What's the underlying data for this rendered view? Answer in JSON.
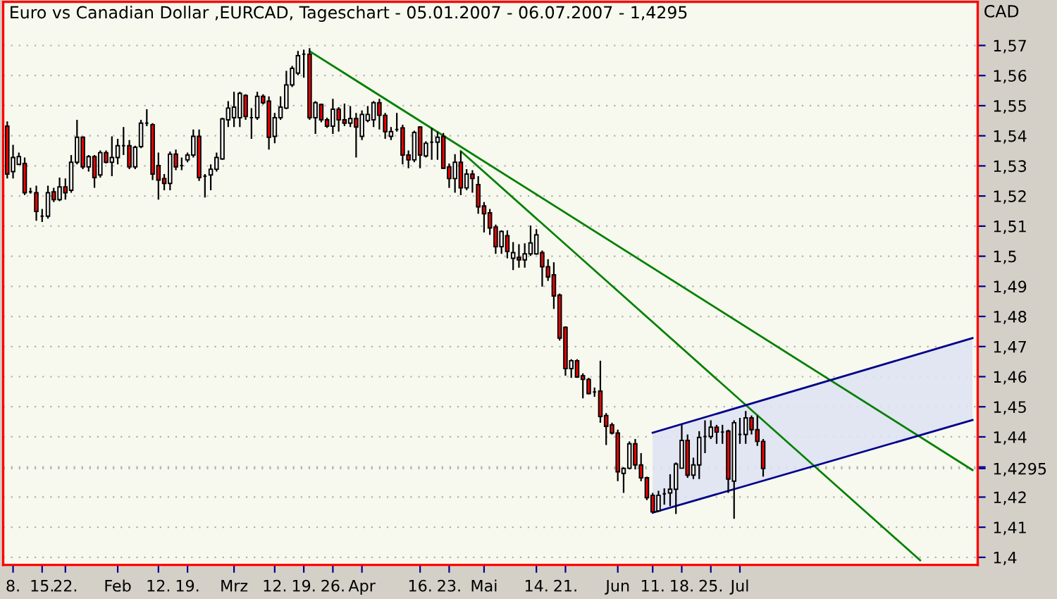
{
  "chart_data": {
    "type": "candlestick",
    "title": "Euro vs Canadian Dollar ,EURCAD, Tageschart - 05.01.2007 - 06.07.2007 - 1,4295",
    "ylabel": "CAD",
    "categories": [
      null,
      "8.",
      null,
      null,
      null,
      null,
      "15.",
      null,
      null,
      null,
      "22.",
      null,
      null,
      null,
      null,
      null,
      null,
      null,
      null,
      "Feb",
      null,
      null,
      null,
      null,
      null,
      null,
      "12.",
      null,
      null,
      null,
      null,
      "19.",
      null,
      null,
      null,
      null,
      null,
      null,
      null,
      "Mrz",
      null,
      null,
      null,
      null,
      null,
      null,
      "12.",
      null,
      null,
      null,
      null,
      "19.",
      null,
      null,
      null,
      null,
      "26.",
      null,
      null,
      null,
      null,
      "Apr",
      null,
      null,
      null,
      null,
      null,
      null,
      null,
      null,
      null,
      "16.",
      null,
      null,
      null,
      null,
      "23.",
      null,
      null,
      null,
      null,
      null,
      "Mai",
      null,
      null,
      null,
      null,
      null,
      null,
      null,
      null,
      "14.",
      null,
      null,
      null,
      null,
      "21.",
      null,
      null,
      null,
      null,
      null,
      null,
      null,
      null,
      "Jun",
      null,
      null,
      null,
      null,
      null,
      "11.",
      null,
      null,
      null,
      null,
      "18.",
      null,
      null,
      null,
      null,
      "25.",
      null,
      null,
      null,
      null,
      "Jul",
      null,
      null,
      null,
      null,
      null,
      null,
      null,
      null,
      null,
      null,
      null,
      null,
      null,
      null,
      null,
      null,
      null,
      null,
      null,
      null,
      null,
      null,
      null,
      null,
      null,
      null,
      null,
      null,
      null,
      null,
      null,
      null,
      null,
      null,
      null,
      null,
      null,
      null,
      null,
      null
    ],
    "ohlc": [
      [
        1.5432,
        1.5448,
        1.5258,
        1.5273
      ],
      [
        1.5281,
        1.537,
        1.5258,
        1.5328
      ],
      [
        1.5305,
        1.5344,
        1.5305,
        1.5331
      ],
      [
        1.5308,
        1.5328,
        1.5203,
        1.5211
      ],
      [
        1.5214,
        1.5227,
        1.5208,
        1.5214
      ],
      [
        1.5211,
        1.5234,
        1.5118,
        1.5149
      ],
      [
        1.5133,
        1.5157,
        1.5114,
        1.5133
      ],
      [
        1.5133,
        1.5234,
        1.5125,
        1.5211
      ],
      [
        1.5214,
        1.5227,
        1.518,
        1.5188
      ],
      [
        1.5188,
        1.5261,
        1.5183,
        1.523
      ],
      [
        1.523,
        1.5258,
        1.5188,
        1.5211
      ],
      [
        1.5219,
        1.5336,
        1.5211,
        1.5312
      ],
      [
        1.5312,
        1.5453,
        1.5305,
        1.5395
      ],
      [
        1.5395,
        1.5398,
        1.5289,
        1.5297
      ],
      [
        1.5297,
        1.5336,
        1.5281,
        1.5331
      ],
      [
        1.5331,
        1.5336,
        1.5227,
        1.5261
      ],
      [
        1.527,
        1.5351,
        1.5261,
        1.5344
      ],
      [
        1.5344,
        1.5351,
        1.5308,
        1.5312
      ],
      [
        1.5312,
        1.5398,
        1.5266,
        1.5328
      ],
      [
        1.5328,
        1.539,
        1.5305,
        1.5367
      ],
      [
        1.5367,
        1.5429,
        1.5336,
        1.5367
      ],
      [
        1.5367,
        1.5386,
        1.5289,
        1.5297
      ],
      [
        1.5297,
        1.5367,
        1.5289,
        1.5362
      ],
      [
        1.5364,
        1.5453,
        1.5359,
        1.5442
      ],
      [
        1.5442,
        1.5488,
        1.5432,
        1.5442
      ],
      [
        1.5437,
        1.5442,
        1.5253,
        1.5273
      ],
      [
        1.5301,
        1.5344,
        1.5188,
        1.5253
      ],
      [
        1.5258,
        1.5273,
        1.5219,
        1.5242
      ],
      [
        1.5242,
        1.5348,
        1.5219,
        1.5339
      ],
      [
        1.5339,
        1.5354,
        1.5286,
        1.5297
      ],
      [
        1.5301,
        1.5328,
        1.5286,
        1.5301
      ],
      [
        1.532,
        1.5344,
        1.5312,
        1.5336
      ],
      [
        1.5336,
        1.5421,
        1.5328,
        1.5398
      ],
      [
        1.5398,
        1.5421,
        1.525,
        1.5261
      ],
      [
        1.5266,
        1.5273,
        1.5195,
        1.5266
      ],
      [
        1.527,
        1.5305,
        1.5219,
        1.5289
      ],
      [
        1.5289,
        1.5344,
        1.5281,
        1.5328
      ],
      [
        1.5323,
        1.546,
        1.532,
        1.5456
      ],
      [
        1.5453,
        1.5515,
        1.5429,
        1.5492
      ],
      [
        1.546,
        1.5546,
        1.5429,
        1.5495
      ],
      [
        1.546,
        1.5546,
        1.5429,
        1.5541
      ],
      [
        1.5534,
        1.5538,
        1.5453,
        1.5464
      ],
      [
        1.546,
        1.5492,
        1.539,
        1.546
      ],
      [
        1.546,
        1.5546,
        1.5453,
        1.5531
      ],
      [
        1.5531,
        1.5538,
        1.5504,
        1.551
      ],
      [
        1.5515,
        1.5531,
        1.5354,
        1.5395
      ],
      [
        1.5398,
        1.5476,
        1.5375,
        1.546
      ],
      [
        1.546,
        1.5531,
        1.5453,
        1.5495
      ],
      [
        1.5492,
        1.5616,
        1.5488,
        1.5569
      ],
      [
        1.5569,
        1.5632,
        1.5562,
        1.5624
      ],
      [
        1.5608,
        1.5682,
        1.5601,
        1.5666
      ],
      [
        1.5671,
        1.5686,
        1.5593,
        1.5671
      ],
      [
        1.5671,
        1.5691,
        1.5453,
        1.546
      ],
      [
        1.546,
        1.5515,
        1.5406,
        1.551
      ],
      [
        1.5504,
        1.5507,
        1.5445,
        1.5453
      ],
      [
        1.5453,
        1.546,
        1.5426,
        1.5432
      ],
      [
        1.5432,
        1.5523,
        1.5406,
        1.5488
      ],
      [
        1.5488,
        1.5495,
        1.5414,
        1.5453
      ],
      [
        1.5453,
        1.5507,
        1.5432,
        1.5442
      ],
      [
        1.5442,
        1.5499,
        1.5429,
        1.5457
      ],
      [
        1.5457,
        1.5476,
        1.5328,
        1.5429
      ],
      [
        1.5398,
        1.5484,
        1.5386,
        1.5471
      ],
      [
        1.5451,
        1.5499,
        1.5445,
        1.5471
      ],
      [
        1.5453,
        1.5515,
        1.5429,
        1.551
      ],
      [
        1.551,
        1.5523,
        1.5421,
        1.5468
      ],
      [
        1.5468,
        1.5476,
        1.539,
        1.5414
      ],
      [
        1.5398,
        1.5429,
        1.5386,
        1.5414
      ],
      [
        1.5421,
        1.5476,
        1.5414,
        1.5421
      ],
      [
        1.5426,
        1.5437,
        1.5305,
        1.5336
      ],
      [
        1.5336,
        1.5351,
        1.5292,
        1.532
      ],
      [
        1.532,
        1.5417,
        1.5312,
        1.5411
      ],
      [
        1.5429,
        1.5432,
        1.5292,
        1.5336
      ],
      [
        1.5333,
        1.5382,
        1.5328,
        1.5375
      ],
      [
        1.5379,
        1.5426,
        1.532,
        1.5379
      ],
      [
        1.5379,
        1.5414,
        1.532,
        1.5395
      ],
      [
        1.5398,
        1.5409,
        1.5289,
        1.5292
      ],
      [
        1.5297,
        1.5308,
        1.5227,
        1.5258
      ],
      [
        1.5258,
        1.5339,
        1.5211,
        1.5312
      ],
      [
        1.5312,
        1.5348,
        1.5203,
        1.5227
      ],
      [
        1.5227,
        1.5289,
        1.5219,
        1.5273
      ],
      [
        1.5273,
        1.5286,
        1.5211,
        1.5258
      ],
      [
        1.5238,
        1.5266,
        1.5141,
        1.5164
      ],
      [
        1.5167,
        1.518,
        1.5079,
        1.5141
      ],
      [
        1.5144,
        1.5157,
        1.5071,
        1.5094
      ],
      [
        1.5097,
        1.5105,
        1.5008,
        1.5032
      ],
      [
        1.5032,
        1.5086,
        1.5008,
        1.5082
      ],
      [
        1.5068,
        1.5086,
        1.4993,
        1.5016
      ],
      [
        1.4993,
        1.5047,
        1.4954,
        1.5012
      ],
      [
        1.4996,
        1.504,
        1.4962,
        1.4988
      ],
      [
        1.4988,
        1.5043,
        1.4962,
        1.5008
      ],
      [
        1.5008,
        1.5102,
        1.5001,
        1.5044
      ],
      [
        1.5008,
        1.509,
        1.5005,
        1.5071
      ],
      [
        1.5012,
        1.5019,
        1.4899,
        1.4965
      ],
      [
        1.4965,
        1.499,
        1.4918,
        1.4931
      ],
      [
        1.4938,
        1.498,
        1.4825,
        1.4868
      ],
      [
        1.4871,
        1.4876,
        1.472,
        1.4728
      ],
      [
        1.4764,
        1.4767,
        1.4603,
        1.4627
      ],
      [
        1.4627,
        1.4658,
        1.4596,
        1.4653
      ],
      [
        1.4653,
        1.4658,
        1.4596,
        1.4599
      ],
      [
        1.4603,
        1.4611,
        1.4528,
        1.4591
      ],
      [
        1.4591,
        1.4596,
        1.4541,
        1.4544
      ],
      [
        1.4549,
        1.4564,
        1.4533,
        1.4549
      ],
      [
        1.4552,
        1.4653,
        1.4447,
        1.4468
      ],
      [
        1.4471,
        1.4479,
        1.4373,
        1.4435
      ],
      [
        1.444,
        1.4447,
        1.4408,
        1.4413
      ],
      [
        1.4413,
        1.4424,
        1.4253,
        1.4284
      ],
      [
        1.4279,
        1.4299,
        1.4214,
        1.4295
      ],
      [
        1.4296,
        1.4385,
        1.4292,
        1.4377
      ],
      [
        1.4377,
        1.4393,
        1.4292,
        1.4307
      ],
      [
        1.4307,
        1.4346,
        1.4253,
        1.4264
      ],
      [
        1.4264,
        1.4268,
        1.419,
        1.4198
      ],
      [
        1.4206,
        1.4214,
        1.4148,
        1.4151
      ],
      [
        1.4154,
        1.4221,
        1.4151,
        1.4206
      ],
      [
        1.4211,
        1.4229,
        1.4175,
        1.4211
      ],
      [
        1.4214,
        1.4276,
        1.417,
        1.4226
      ],
      [
        1.4226,
        1.4315,
        1.4144,
        1.431
      ],
      [
        1.4296,
        1.444,
        1.4295,
        1.4388
      ],
      [
        1.4388,
        1.4408,
        1.4264,
        1.4273
      ],
      [
        1.4273,
        1.4331,
        1.426,
        1.4307
      ],
      [
        1.4307,
        1.4419,
        1.426,
        1.4398
      ],
      [
        1.4401,
        1.4455,
        1.4346,
        1.4401
      ],
      [
        1.4401,
        1.4455,
        1.4393,
        1.4432
      ],
      [
        1.4432,
        1.444,
        1.4377,
        1.4416
      ],
      [
        1.4416,
        1.444,
        1.4377,
        1.4416
      ],
      [
        1.4419,
        1.4424,
        1.4214,
        1.426
      ],
      [
        1.4253,
        1.4455,
        1.4128,
        1.4447
      ],
      [
        1.4408,
        1.4463,
        1.4377,
        1.4408
      ],
      [
        1.4408,
        1.4486,
        1.4377,
        1.4463
      ],
      [
        1.4463,
        1.4471,
        1.4408,
        1.4424
      ],
      [
        1.4424,
        1.4471,
        1.437,
        1.4385
      ],
      [
        1.4385,
        1.4393,
        1.4268,
        1.4295
      ],
      null,
      null,
      null,
      null,
      null,
      null,
      null,
      null,
      null,
      null,
      null,
      null,
      null,
      null,
      null,
      null,
      null,
      null,
      null,
      null,
      null,
      null,
      null,
      null,
      null,
      null,
      null,
      null,
      null,
      null,
      null,
      null,
      null,
      null,
      null,
      null
    ],
    "series": [
      {
        "type": "line",
        "color": "#008000",
        "values": [
          null,
          null,
          null,
          null,
          null,
          null,
          null,
          null,
          null,
          null,
          null,
          null,
          null,
          null,
          null,
          null,
          null,
          null,
          null,
          null,
          null,
          null,
          null,
          null,
          null,
          null,
          null,
          null,
          null,
          null,
          null,
          null,
          null,
          null,
          null,
          null,
          null,
          null,
          null,
          null,
          null,
          null,
          null,
          null,
          null,
          null,
          null,
          null,
          null,
          null,
          null,
          null,
          1.5681,
          null,
          null,
          null,
          null,
          null,
          null,
          null,
          null,
          null,
          null,
          null,
          null,
          null,
          null,
          null,
          null,
          null,
          null,
          null,
          null,
          null,
          null,
          null,
          null,
          null,
          null,
          null,
          null,
          null,
          null,
          null,
          null,
          null,
          null,
          null,
          null,
          null,
          null,
          null,
          null,
          null,
          null,
          null,
          null,
          null,
          null,
          null,
          null,
          null,
          null,
          null,
          null,
          null,
          null,
          null,
          null,
          null,
          null,
          null,
          null,
          null,
          null,
          null,
          null,
          null,
          null,
          null,
          null,
          null,
          null,
          null,
          null,
          null,
          null,
          null,
          null,
          null,
          null,
          null,
          null,
          null,
          null,
          null,
          null,
          null,
          null,
          null,
          null,
          null,
          null,
          null,
          null,
          null,
          null,
          null,
          null,
          null,
          null,
          null,
          null,
          null,
          null,
          null,
          null,
          null,
          null,
          null,
          null,
          null,
          null,
          null,
          null,
          null,
          1.429
        ]
      },
      {
        "type": "line",
        "color": "#008000",
        "values": [
          null,
          null,
          null,
          null,
          null,
          null,
          null,
          null,
          null,
          null,
          null,
          null,
          null,
          null,
          null,
          null,
          null,
          null,
          null,
          null,
          null,
          null,
          null,
          null,
          null,
          null,
          null,
          null,
          null,
          null,
          null,
          null,
          null,
          null,
          null,
          null,
          null,
          null,
          null,
          null,
          null,
          null,
          null,
          null,
          null,
          null,
          null,
          null,
          null,
          null,
          null,
          null,
          null,
          null,
          null,
          null,
          null,
          null,
          null,
          null,
          null,
          null,
          null,
          null,
          null,
          null,
          null,
          null,
          null,
          null,
          null,
          null,
          null,
          null,
          null,
          null,
          null,
          null,
          1.5349,
          null,
          null,
          null,
          null,
          null,
          null,
          null,
          null,
          null,
          null,
          null,
          null,
          null,
          null,
          null,
          null,
          null,
          null,
          null,
          null,
          null,
          null,
          null,
          null,
          null,
          null,
          null,
          null,
          null,
          null,
          null,
          null,
          null,
          null,
          null,
          null,
          null,
          null,
          null,
          null,
          null,
          null,
          null,
          null,
          null,
          null,
          null,
          null,
          null,
          null,
          null,
          null,
          null,
          null,
          null,
          null,
          null,
          null,
          null,
          null,
          null,
          null,
          null,
          null,
          null,
          null,
          null,
          null,
          null,
          null,
          null,
          null,
          null,
          null,
          null,
          null,
          null,
          null,
          1.399,
          null,
          null,
          null,
          null,
          null,
          null,
          null,
          null,
          null
        ]
      },
      {
        "type": "line",
        "color": "#00008b",
        "values": [
          null,
          null,
          null,
          null,
          null,
          null,
          null,
          null,
          null,
          null,
          null,
          null,
          null,
          null,
          null,
          null,
          null,
          null,
          null,
          null,
          null,
          null,
          null,
          null,
          null,
          null,
          null,
          null,
          null,
          null,
          null,
          null,
          null,
          null,
          null,
          null,
          null,
          null,
          null,
          null,
          null,
          null,
          null,
          null,
          null,
          null,
          null,
          null,
          null,
          null,
          null,
          null,
          null,
          null,
          null,
          null,
          null,
          null,
          null,
          null,
          null,
          null,
          null,
          null,
          null,
          null,
          null,
          null,
          null,
          null,
          null,
          null,
          null,
          null,
          null,
          null,
          null,
          null,
          null,
          null,
          null,
          null,
          null,
          null,
          null,
          null,
          null,
          null,
          null,
          null,
          null,
          null,
          null,
          null,
          null,
          null,
          null,
          null,
          null,
          null,
          null,
          null,
          null,
          null,
          null,
          null,
          null,
          null,
          null,
          null,
          null,
          1.4414,
          null,
          null,
          null,
          null,
          null,
          null,
          null,
          null,
          null,
          null,
          null,
          null,
          null,
          null,
          null,
          null,
          null,
          null,
          null,
          null,
          null,
          null,
          null,
          null,
          null,
          null,
          null,
          null,
          null,
          null,
          null,
          null,
          null,
          null,
          null,
          null,
          null,
          null,
          null,
          null,
          null,
          null,
          null,
          null,
          null,
          null,
          null,
          null,
          null,
          null,
          null,
          null,
          null,
          null,
          1.4728
        ],
        "lower": [
          null,
          null,
          null,
          null,
          null,
          null,
          null,
          null,
          null,
          null,
          null,
          null,
          null,
          null,
          null,
          null,
          null,
          null,
          null,
          null,
          null,
          null,
          null,
          null,
          null,
          null,
          null,
          null,
          null,
          null,
          null,
          null,
          null,
          null,
          null,
          null,
          null,
          null,
          null,
          null,
          null,
          null,
          null,
          null,
          null,
          null,
          null,
          null,
          null,
          null,
          null,
          null,
          null,
          null,
          null,
          null,
          null,
          null,
          null,
          null,
          null,
          null,
          null,
          null,
          null,
          null,
          null,
          null,
          null,
          null,
          null,
          null,
          null,
          null,
          null,
          null,
          null,
          null,
          null,
          null,
          null,
          null,
          null,
          null,
          null,
          null,
          null,
          null,
          null,
          null,
          null,
          null,
          null,
          null,
          null,
          null,
          null,
          null,
          null,
          null,
          null,
          null,
          null,
          null,
          null,
          null,
          null,
          null,
          null,
          null,
          null,
          1.4148,
          null,
          null,
          null,
          null,
          null,
          null,
          null,
          null,
          null,
          null,
          null,
          null,
          null,
          null,
          null,
          null,
          null,
          null,
          null,
          null,
          null,
          null,
          null,
          null,
          null,
          null,
          null,
          null,
          null,
          null,
          null,
          null,
          null,
          null,
          null,
          null,
          null,
          null,
          null,
          null,
          null,
          null,
          null,
          null,
          null,
          null,
          null,
          null,
          null,
          null,
          null,
          null,
          null,
          null,
          1.4456
        ],
        "upper": [
          null,
          null,
          null,
          null,
          null,
          null,
          null,
          null,
          null,
          null,
          null,
          null,
          null,
          null,
          null,
          null,
          null,
          null,
          null,
          null,
          null,
          null,
          null,
          null,
          null,
          null,
          null,
          null,
          null,
          null,
          null,
          null,
          null,
          null,
          null,
          null,
          null,
          null,
          null,
          null,
          null,
          null,
          null,
          null,
          null,
          null,
          null,
          null,
          null,
          null,
          null,
          null,
          null,
          null,
          null,
          null,
          null,
          null,
          null,
          null,
          null,
          null,
          null,
          null,
          null,
          null,
          null,
          null,
          null,
          null,
          null,
          null,
          null,
          null,
          null,
          null,
          null,
          null,
          null,
          null,
          null,
          null,
          null,
          null,
          null,
          null,
          null,
          null,
          null,
          null,
          null,
          null,
          null,
          null,
          null,
          null,
          null,
          null,
          null,
          null,
          null,
          null,
          null,
          null,
          null,
          null,
          null,
          null,
          null,
          null,
          null,
          1.4414,
          null,
          null,
          null,
          null,
          null,
          null,
          null,
          null,
          null,
          null,
          null,
          null,
          null,
          null,
          null,
          null,
          null,
          null,
          null,
          null,
          null,
          null,
          null,
          null,
          null,
          null,
          null,
          null,
          null,
          null,
          null,
          null,
          null,
          null,
          null,
          null,
          null,
          null,
          null,
          null,
          null,
          null,
          null,
          null,
          null,
          null,
          null,
          null,
          null,
          null,
          null,
          null,
          null,
          null,
          1.4728
        ]
      },
      {
        "type": "line",
        "color": "#00008b",
        "values": [
          null,
          null,
          null,
          null,
          null,
          null,
          null,
          null,
          null,
          null,
          null,
          null,
          null,
          null,
          null,
          null,
          null,
          null,
          null,
          null,
          null,
          null,
          null,
          null,
          null,
          null,
          null,
          null,
          null,
          null,
          null,
          null,
          null,
          null,
          null,
          null,
          null,
          null,
          null,
          null,
          null,
          null,
          null,
          null,
          null,
          null,
          null,
          null,
          null,
          null,
          null,
          null,
          null,
          null,
          null,
          null,
          null,
          null,
          null,
          null,
          null,
          null,
          null,
          null,
          null,
          null,
          null,
          null,
          null,
          null,
          null,
          null,
          null,
          null,
          null,
          null,
          null,
          null,
          null,
          null,
          null,
          null,
          null,
          null,
          null,
          null,
          null,
          null,
          null,
          null,
          null,
          null,
          null,
          null,
          null,
          null,
          null,
          null,
          null,
          null,
          null,
          null,
          null,
          null,
          null,
          null,
          null,
          null,
          null,
          null,
          null,
          1.4148,
          null,
          null,
          null,
          null,
          null,
          null,
          null,
          null,
          null,
          null,
          null,
          null,
          null,
          null,
          null,
          null,
          null,
          null,
          null,
          null,
          null,
          null,
          null,
          null,
          null,
          null,
          null,
          null,
          null,
          null,
          null,
          null,
          null,
          null,
          null,
          null,
          null,
          null,
          null,
          null,
          null,
          null,
          null,
          null,
          null,
          null,
          null,
          null,
          null,
          null,
          null,
          null,
          null,
          null,
          1.4456
        ]
      }
    ],
    "ylim": [
      1.3975,
      1.5845
    ],
    "yticks": [
      {
        "value": 1.4,
        "label": "1,4"
      },
      {
        "value": 1.41,
        "label": "1,41"
      },
      {
        "value": 1.42,
        "label": "1,42"
      },
      {
        "value": 1.4295,
        "label": "1,4295"
      },
      {
        "value": 1.43,
        "label": null
      },
      {
        "value": 1.44,
        "label": "1,44"
      },
      {
        "value": 1.45,
        "label": "1,45"
      },
      {
        "value": 1.46,
        "label": "1,46"
      },
      {
        "value": 1.47,
        "label": "1,47"
      },
      {
        "value": 1.48,
        "label": "1,48"
      },
      {
        "value": 1.49,
        "label": "1,49"
      },
      {
        "value": 1.5,
        "label": "1,5"
      },
      {
        "value": 1.51,
        "label": "1,51"
      },
      {
        "value": 1.52,
        "label": "1,52"
      },
      {
        "value": 1.53,
        "label": "1,53"
      },
      {
        "value": 1.54,
        "label": "1,54"
      },
      {
        "value": 1.55,
        "label": "1,55"
      },
      {
        "value": 1.56,
        "label": "1,56"
      },
      {
        "value": 1.57,
        "label": "1,57"
      }
    ],
    "grid": "y"
  }
}
